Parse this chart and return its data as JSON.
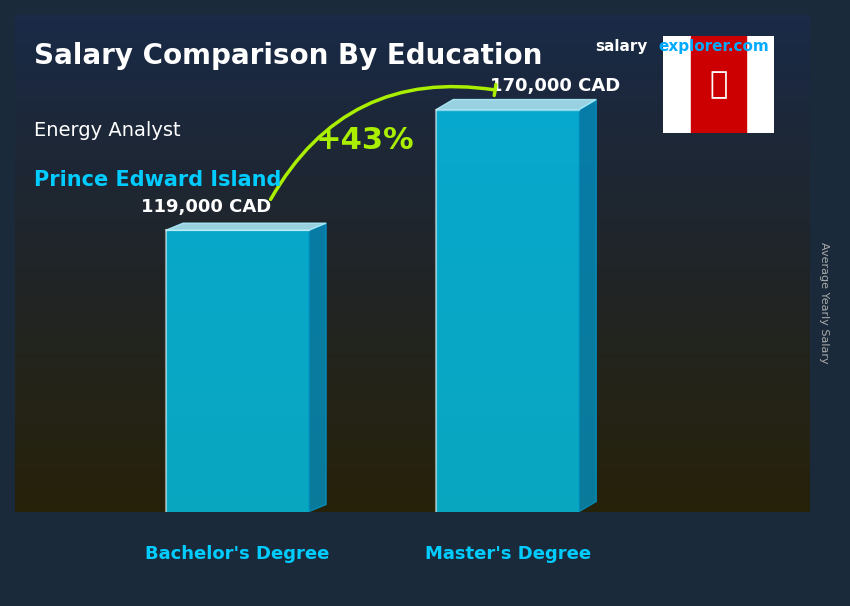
{
  "title_main": "Salary Comparison By Education",
  "title_site_salary": "salary",
  "title_site_rest": "explorer.com",
  "subtitle1": "Energy Analyst",
  "subtitle2": "Prince Edward Island",
  "categories": [
    "Bachelor's Degree",
    "Master's Degree"
  ],
  "values": [
    119000,
    170000
  ],
  "value_labels": [
    "119,000 CAD",
    "170,000 CAD"
  ],
  "pct_change": "+43%",
  "bar_color_face": "#00d4ff",
  "bar_color_light": "#80eeff",
  "bar_color_dark": "#0099cc",
  "bar_color_top": "#b0f0ff",
  "bg_top_color": "#1a2a4a",
  "bg_bottom_color": "#3a2000",
  "ylabel_rotated": "Average Yearly Salary",
  "ylim": [
    0,
    210000
  ],
  "arrow_color": "#aaee00",
  "pct_color": "#aaee00",
  "title_color": "#ffffff",
  "subtitle1_color": "#ffffff",
  "subtitle2_color": "#00ccff",
  "value_label_color": "#ffffff",
  "cat_label_color": "#00ccff",
  "site_color_salary": "#ffffff",
  "site_color_rest": "#00aaff"
}
